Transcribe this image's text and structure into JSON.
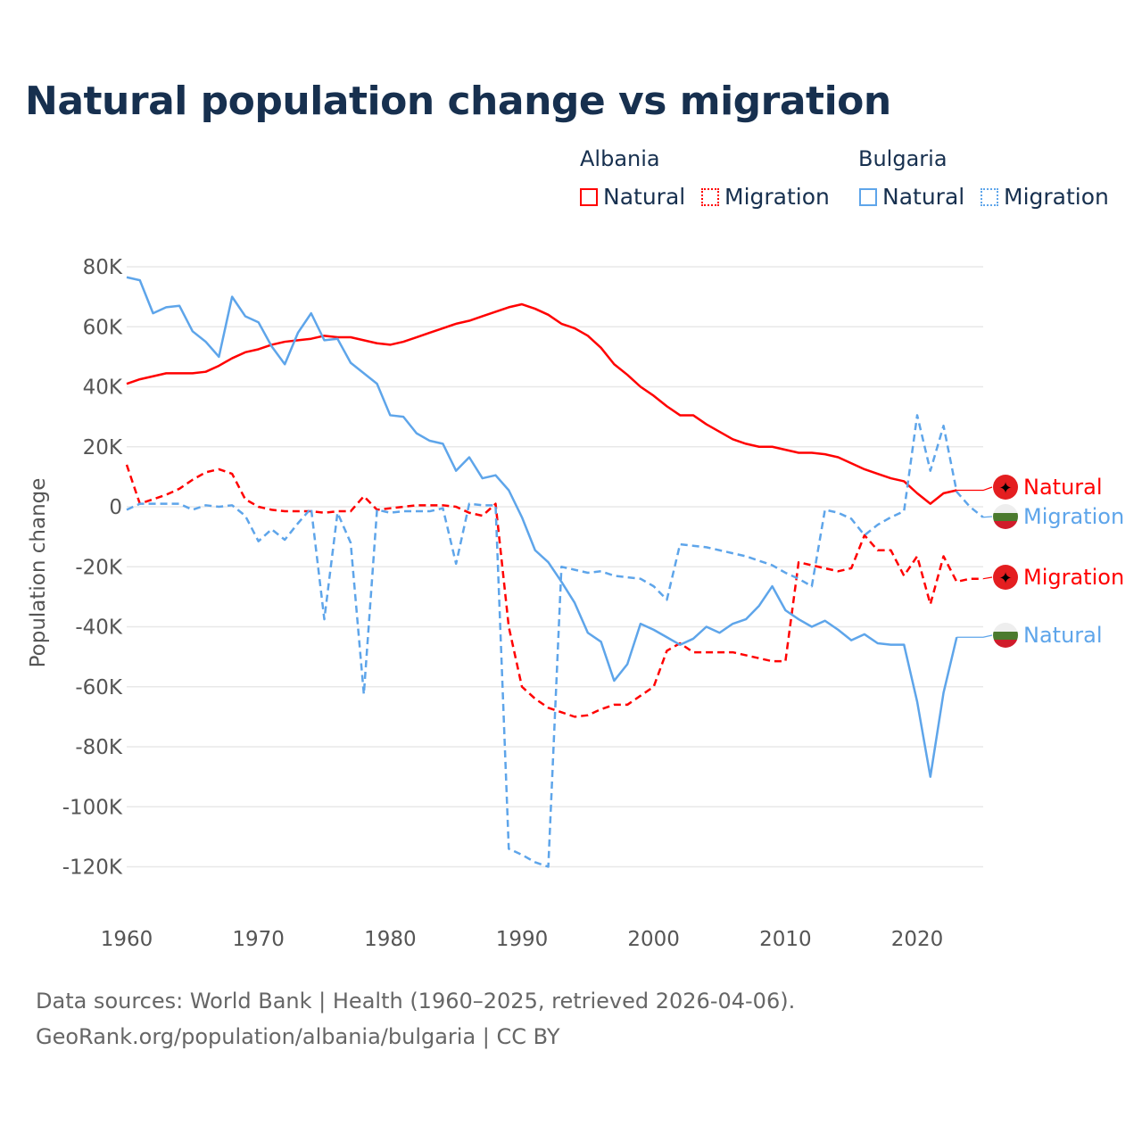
{
  "title": "Natural population change vs migration",
  "legend": {
    "groups": [
      {
        "name": "Albania",
        "color": "#ff0000",
        "items": [
          "Natural",
          "Migration"
        ]
      },
      {
        "name": "Bulgaria",
        "color": "#5ea5ea",
        "items": [
          "Natural",
          "Migration"
        ]
      }
    ]
  },
  "footer": {
    "line1": "Data sources: World Bank | Health (1960–2025, retrieved 2026-04-06).",
    "line2": "GeoRank.org/population/albania/bulgaria | CC BY"
  },
  "chart_data": {
    "type": "line",
    "title": "Natural population change vs migration",
    "xlabel": "",
    "ylabel": "Population change",
    "xlim": [
      1960,
      2025
    ],
    "ylim": [
      -130000,
      82000
    ],
    "x_ticks": [
      1960,
      1970,
      1980,
      1990,
      2000,
      2010,
      2020
    ],
    "x_tick_labels": [
      "1960",
      "1970",
      "1980",
      "1990",
      "2000",
      "2010",
      "2020"
    ],
    "y_ticks": [
      80000,
      60000,
      40000,
      20000,
      0,
      -20000,
      -40000,
      -60000,
      -80000,
      -100000,
      -120000
    ],
    "y_tick_labels": [
      "80K",
      "60K",
      "40K",
      "20K",
      "0",
      "-20K",
      "-40K",
      "-60K",
      "-80K",
      "-100K",
      "-120K"
    ],
    "grid": true,
    "start_year": 1960,
    "series": [
      {
        "name": "Albania Natural",
        "end_label": "Natural",
        "country": "Albania",
        "color": "#ff0000",
        "dashed": false,
        "values_k": [
          41,
          42.5,
          43.5,
          44.5,
          44.5,
          44.5,
          45,
          47,
          49.5,
          51.5,
          52.5,
          54,
          55,
          55.5,
          56,
          57,
          56.5,
          56.5,
          55.5,
          54.5,
          54,
          55,
          56.5,
          58,
          59.5,
          61,
          62,
          63.5,
          65,
          66.5,
          67.5,
          66,
          64,
          61,
          59.5,
          57,
          53,
          47.5,
          44,
          40,
          37,
          33.5,
          30.5,
          30.5,
          27.5,
          25,
          22.5,
          21,
          20,
          20,
          19,
          18,
          18,
          17.5,
          16.5,
          14.5,
          12.5,
          11,
          9.5,
          8.5,
          4.5,
          1,
          4.5,
          5.5
        ]
      },
      {
        "name": "Albania Migration",
        "end_label": "Migration",
        "country": "Albania",
        "color": "#ff0000",
        "dashed": true,
        "values_k": [
          14,
          1,
          2.5,
          4,
          6,
          9,
          11.5,
          12.5,
          11,
          2.5,
          0,
          -1,
          -1.5,
          -1.5,
          -1.5,
          -2,
          -1.5,
          -1.5,
          3.5,
          -1,
          -0.5,
          0,
          0.5,
          0.5,
          0.5,
          0,
          -2,
          -3,
          1,
          -40,
          -60,
          -64,
          -67,
          -68.5,
          -70,
          -69.5,
          -67.5,
          -66,
          -66,
          -63,
          -60,
          -48,
          -45.5,
          -48.5,
          -48.5,
          -48.5,
          -48.5,
          -49.5,
          -50.5,
          -51.5,
          -51.5,
          -18.5,
          -19.5,
          -20.5,
          -21.5,
          -20.5,
          -9.5,
          -14.5,
          -14.5,
          -23,
          -16.5,
          -32.5,
          -16.5,
          -25,
          -24,
          -24
        ]
      },
      {
        "name": "Bulgaria Natural",
        "end_label": "Natural",
        "country": "Bulgaria",
        "color": "#5ea5ea",
        "dashed": false,
        "values_k": [
          76.5,
          75.5,
          64.5,
          66.5,
          67,
          58.5,
          55,
          50,
          70,
          63.5,
          61.5,
          53.5,
          47.5,
          58,
          64.5,
          55.5,
          56,
          48,
          44.5,
          41,
          30.5,
          30,
          24.5,
          22,
          21,
          12,
          16.5,
          9.5,
          10.5,
          5.5,
          -3.5,
          -14.5,
          -18.5,
          -25,
          -32,
          -42,
          -45,
          -58,
          -52.5,
          -39,
          -41,
          -43.5,
          -46,
          -44,
          -40,
          -42,
          -39,
          -37.5,
          -33,
          -26.5,
          -34.5,
          -37.5,
          -40,
          -38,
          -41,
          -44.5,
          -42.5,
          -45.5,
          -46,
          -46,
          -65,
          -90,
          -62,
          -43.5
        ]
      },
      {
        "name": "Bulgaria Migration",
        "end_label": "Migration",
        "country": "Bulgaria",
        "color": "#5ea5ea",
        "dashed": true,
        "values_k": [
          -1,
          1,
          1,
          1,
          1,
          -1,
          0.5,
          0,
          0.5,
          -3,
          -11.5,
          -7.5,
          -11,
          -5.5,
          -0.5,
          -37.5,
          -2,
          -12,
          -62.5,
          -1,
          -2,
          -1.5,
          -1.5,
          -1.5,
          -0.5,
          -19,
          1,
          0.5,
          0.5,
          -114,
          -116,
          -118.5,
          -120,
          -20,
          -21,
          -22,
          -21.5,
          -23,
          -23.5,
          -24,
          -26.5,
          -31,
          -12.5,
          -13,
          -13.5,
          -14.5,
          -15.5,
          -16.5,
          -18,
          -19.5,
          -22,
          -24,
          -26.5,
          -1,
          -2,
          -4,
          -9.5,
          -6,
          -3.5,
          -1.5,
          30.5,
          12,
          27,
          5,
          0,
          -3.5
        ]
      }
    ]
  }
}
